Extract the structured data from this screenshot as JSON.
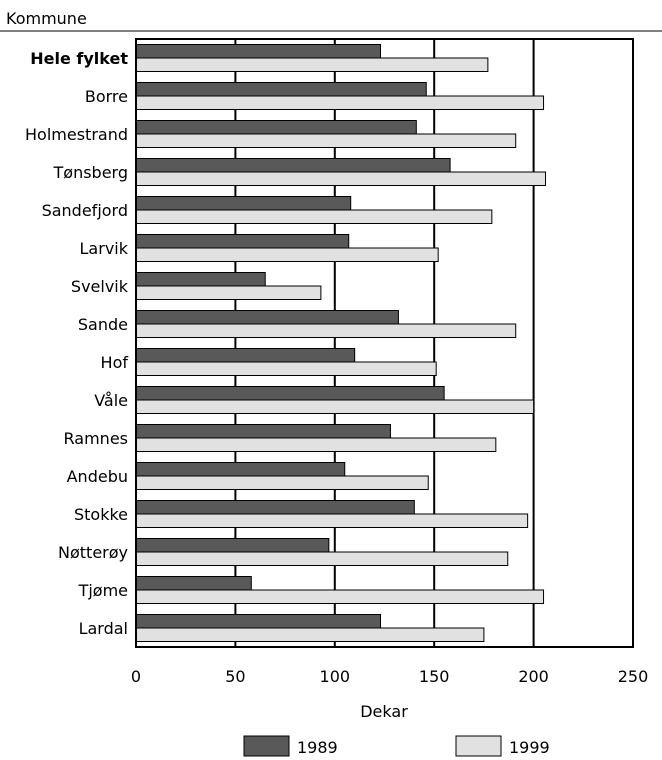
{
  "chart_data": {
    "type": "bar",
    "orientation": "horizontal",
    "title": "Kommune",
    "xlabel": "Dekar",
    "ylabel": "",
    "xlim": [
      0,
      250
    ],
    "xticks": [
      0,
      50,
      100,
      150,
      200,
      250
    ],
    "grid": true,
    "legend_position": "bottom",
    "categories": [
      "Hele fylket",
      "Borre",
      "Holmestrand",
      "Tønsberg",
      "Sandefjord",
      "Larvik",
      "Svelvik",
      "Sande",
      "Hof",
      "Våle",
      "Ramnes",
      "Andebu",
      "Stokke",
      "Nøtterøy",
      "Tjøme",
      "Lardal"
    ],
    "bold_categories": [
      "Hele fylket"
    ],
    "series": [
      {
        "name": "1989",
        "color": "#595959",
        "values": [
          123,
          146,
          141,
          158,
          108,
          107,
          65,
          132,
          110,
          155,
          128,
          105,
          140,
          97,
          58,
          123
        ]
      },
      {
        "name": "1999",
        "color": "#e1e1e1",
        "values": [
          177,
          205,
          191,
          206,
          179,
          152,
          93,
          191,
          151,
          200,
          181,
          147,
          197,
          187,
          205,
          175
        ]
      }
    ]
  }
}
